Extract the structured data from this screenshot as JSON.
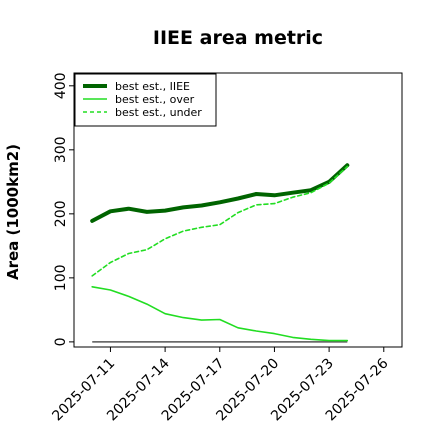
{
  "chart_data": {
    "type": "line",
    "title": "IIEE area metric",
    "xlabel": "",
    "ylabel": "Area (1000km2)",
    "ylim": [
      -8,
      420
    ],
    "xlim_dates": [
      "2025-07-09",
      "2025-07-27"
    ],
    "x_ticks": [
      "2025-07-11",
      "2025-07-14",
      "2025-07-17",
      "2025-07-20",
      "2025-07-23",
      "2025-07-26"
    ],
    "y_ticks": [
      0,
      100,
      200,
      300,
      400
    ],
    "y_tick_labels": [
      "0",
      "100",
      "200",
      "300",
      "400"
    ],
    "legend_position": "top-left",
    "grid": false,
    "x": [
      "2025-07-10",
      "2025-07-11",
      "2025-07-12",
      "2025-07-13",
      "2025-07-14",
      "2025-07-15",
      "2025-07-16",
      "2025-07-17",
      "2025-07-18",
      "2025-07-19",
      "2025-07-20",
      "2025-07-21",
      "2025-07-22",
      "2025-07-23",
      "2025-07-24"
    ],
    "series": [
      {
        "name": "best est., IIEE",
        "color": "#006400",
        "style": "solid-thick",
        "values": [
          189,
          204,
          208,
          203,
          205,
          210,
          213,
          218,
          224,
          231,
          229,
          233,
          237,
          250,
          276
        ]
      },
      {
        "name": "best est., over",
        "color": "#22dd22",
        "style": "solid",
        "values": [
          86,
          81,
          71,
          59,
          44,
          38,
          34,
          35,
          22,
          17,
          13,
          7,
          4,
          2,
          2
        ]
      },
      {
        "name": "best est., under",
        "color": "#22dd22",
        "style": "dashed",
        "values": [
          103,
          124,
          138,
          144,
          161,
          173,
          179,
          183,
          202,
          214,
          216,
          226,
          233,
          248,
          274
        ]
      }
    ],
    "reference_line": {
      "color": "#555555",
      "value": 0,
      "x_range": [
        "2025-07-10",
        "2025-07-24"
      ]
    }
  }
}
